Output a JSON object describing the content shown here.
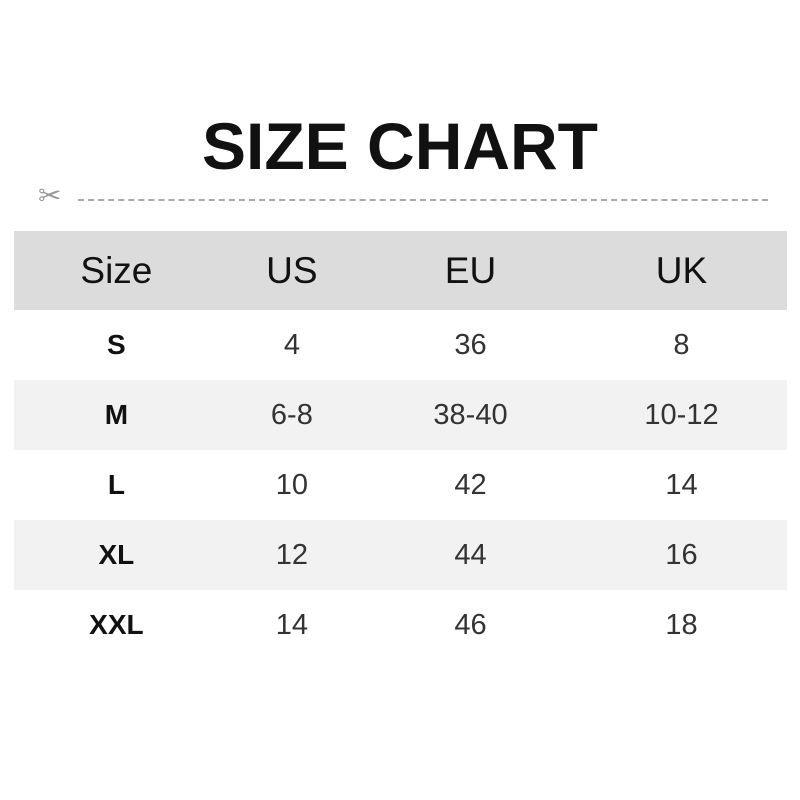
{
  "title": "SIZE CHART",
  "headers": [
    "Size",
    "US",
    "EU",
    "UK"
  ],
  "rows": [
    [
      "S",
      "4",
      "36",
      "8"
    ],
    [
      "M",
      "6-8",
      "38-40",
      "10-12"
    ],
    [
      "L",
      "10",
      "42",
      "14"
    ],
    [
      "XL",
      "12",
      "44",
      "16"
    ],
    [
      "XXL",
      "14",
      "46",
      "18"
    ]
  ]
}
